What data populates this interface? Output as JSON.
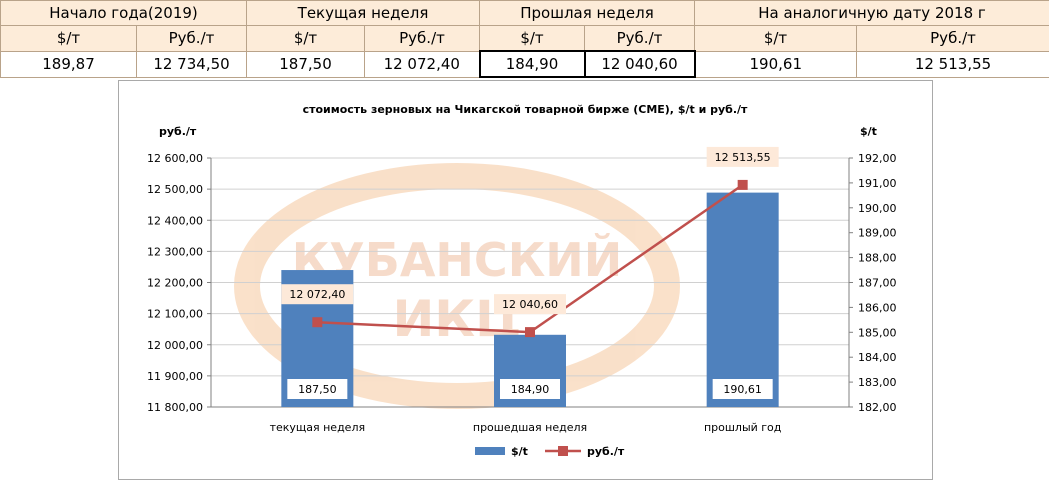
{
  "table": {
    "groups": [
      "Начало года(2019)",
      "Текущая неделя",
      "Прошлая неделя",
      "На аналогичную дату 2018 г"
    ],
    "units": [
      "$/т",
      "Руб./т",
      "$/т",
      "Руб./т",
      "$/т",
      "Руб./т",
      "$/т",
      "Руб./т"
    ],
    "values": [
      "189,87",
      "12 734,50",
      "187,50",
      "12 072,40",
      "184,90",
      "12 040,60",
      "190,61",
      "12 513,55"
    ]
  },
  "watermark": {
    "line1": "КУБАНСКИЙ",
    "line2": "ИКЦ"
  },
  "chart_data": {
    "type": "bar",
    "title": "стоимость зерновых на Чикагской товарной бирже (СМЕ), $/t и руб./т",
    "ylabel_left": "руб./т",
    "ylabel_right": "$/t",
    "categories": [
      "текущая неделя",
      "прошедшая неделя",
      "прошлый год"
    ],
    "ylim_left": [
      11800,
      12600
    ],
    "ylim_right": [
      182,
      192
    ],
    "left_ticks": [
      "11 800,00",
      "11 900,00",
      "12 000,00",
      "12 100,00",
      "12 200,00",
      "12 300,00",
      "12 400,00",
      "12 500,00",
      "12 600,00"
    ],
    "right_ticks": [
      "182,00",
      "183,00",
      "184,00",
      "185,00",
      "186,00",
      "187,00",
      "188,00",
      "189,00",
      "190,00",
      "191,00",
      "192,00"
    ],
    "series": [
      {
        "name": "$/t",
        "type": "bar",
        "axis": "right",
        "color": "#4f81bd",
        "values": [
          187.5,
          184.9,
          190.61
        ],
        "labels": [
          "187,50",
          "184,90",
          "190,61"
        ]
      },
      {
        "name": "руб./т",
        "type": "line",
        "axis": "left",
        "color": "#c0504d",
        "values": [
          12072.4,
          12040.6,
          12513.55
        ],
        "labels": [
          "12 072,40",
          "12 040,60",
          "12 513,55"
        ]
      }
    ],
    "legend": "bottom",
    "grid": true
  }
}
